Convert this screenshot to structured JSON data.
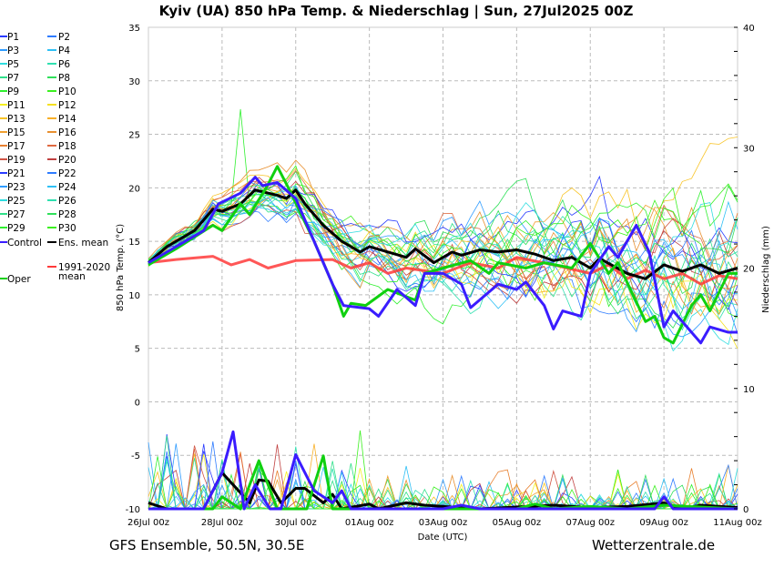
{
  "chart_data": {
    "type": "line",
    "title": "Kyiv  (UA)  850 hPa Temp. & Niederschlag | Sun, 27Jul2025 00Z",
    "xlabel": "Date (UTC)",
    "ylabel": "850 hPa Temp. (°C)",
    "ylabel_right": "Niederschlag (mm)",
    "ylim": [
      -10,
      35
    ],
    "ylim_right": [
      0,
      40
    ],
    "x_unit": "days since 26Jul 00z",
    "xlim": [
      0,
      16
    ],
    "x_ticks": [
      {
        "day": 0,
        "label": "26Jul 00z"
      },
      {
        "day": 2,
        "label": "28Jul 00z"
      },
      {
        "day": 4,
        "label": "30Jul 00z"
      },
      {
        "day": 6,
        "label": "01Aug 00z"
      },
      {
        "day": 8,
        "label": "03Aug 00z"
      },
      {
        "day": 10,
        "label": "05Aug 00z"
      },
      {
        "day": 12,
        "label": "07Aug 00z"
      },
      {
        "day": 14,
        "label": "09Aug 00z"
      },
      {
        "day": 16,
        "label": "11Aug 00z"
      }
    ],
    "y_ticks": [
      "-10",
      "-5",
      "0",
      "5",
      "10",
      "15",
      "20",
      "25",
      "30",
      "35"
    ],
    "y_ticks_right": [
      "0",
      "10",
      "20",
      "30",
      "40"
    ],
    "grid": true,
    "legend_placement": "left-outside",
    "members": [
      {
        "name": "P1",
        "color": "#2a3cff"
      },
      {
        "name": "P2",
        "color": "#2f7cff"
      },
      {
        "name": "P3",
        "color": "#2f9cff"
      },
      {
        "name": "P4",
        "color": "#30c0f5"
      },
      {
        "name": "P5",
        "color": "#30dde0"
      },
      {
        "name": "P6",
        "color": "#30e0b0"
      },
      {
        "name": "P7",
        "color": "#30e08a"
      },
      {
        "name": "P8",
        "color": "#30e05a"
      },
      {
        "name": "P9",
        "color": "#30f030"
      },
      {
        "name": "P10",
        "color": "#3cf020"
      },
      {
        "name": "P11",
        "color": "#f5f020"
      },
      {
        "name": "P12",
        "color": "#f5e020"
      },
      {
        "name": "P13",
        "color": "#f8c428"
      },
      {
        "name": "P14",
        "color": "#f8b028"
      },
      {
        "name": "P15",
        "color": "#f0a030"
      },
      {
        "name": "P16",
        "color": "#e89030"
      },
      {
        "name": "P17",
        "color": "#e88030"
      },
      {
        "name": "P18",
        "color": "#e06a40"
      },
      {
        "name": "P19",
        "color": "#d05545"
      },
      {
        "name": "P20",
        "color": "#c04040"
      },
      {
        "name": "P21",
        "color": "#2a3cff"
      },
      {
        "name": "P22",
        "color": "#2f7cff"
      },
      {
        "name": "P23",
        "color": "#2f9cff"
      },
      {
        "name": "P24",
        "color": "#30c0f5"
      },
      {
        "name": "P25",
        "color": "#30dde0"
      },
      {
        "name": "P26",
        "color": "#30e0b0"
      },
      {
        "name": "P27",
        "color": "#30e08a"
      },
      {
        "name": "P28",
        "color": "#30e05a"
      },
      {
        "name": "P29",
        "color": "#30f030"
      },
      {
        "name": "P30",
        "color": "#3cf020"
      }
    ],
    "series": [
      {
        "name": "Control",
        "color": "#3a1cff",
        "width": 3,
        "temp": [
          [
            0,
            13
          ],
          [
            0.75,
            14.5
          ],
          [
            1.5,
            16
          ],
          [
            1.9,
            18.5
          ],
          [
            2.5,
            19.5
          ],
          [
            2.9,
            21
          ],
          [
            3.1,
            20.2
          ],
          [
            3.5,
            20.5
          ],
          [
            4,
            19
          ],
          [
            4.5,
            15
          ],
          [
            5,
            11
          ],
          [
            5.3,
            9
          ],
          [
            6,
            8.7
          ],
          [
            6.25,
            8
          ],
          [
            6.75,
            10.5
          ],
          [
            7.25,
            9
          ],
          [
            7.5,
            12
          ],
          [
            8,
            12
          ],
          [
            8.5,
            11
          ],
          [
            8.75,
            8.8
          ],
          [
            9.5,
            11
          ],
          [
            10,
            10.5
          ],
          [
            10.25,
            11.2
          ],
          [
            10.75,
            9
          ],
          [
            11,
            6.8
          ],
          [
            11.25,
            8.5
          ],
          [
            11.75,
            8
          ],
          [
            12,
            12
          ],
          [
            12.5,
            14.5
          ],
          [
            12.75,
            13.5
          ],
          [
            13.25,
            16.5
          ],
          [
            13.6,
            14
          ],
          [
            14,
            7
          ],
          [
            14.25,
            8.5
          ],
          [
            15,
            5.5
          ],
          [
            15.25,
            7
          ],
          [
            15.75,
            6.5
          ],
          [
            16,
            6.5
          ]
        ],
        "precip": [
          [
            0,
            0
          ],
          [
            1.5,
            0
          ],
          [
            2,
            3
          ],
          [
            2.3,
            6.4
          ],
          [
            2.6,
            0
          ],
          [
            2.9,
            2
          ],
          [
            3.3,
            0
          ],
          [
            3.6,
            0
          ],
          [
            4,
            4.5
          ],
          [
            4.5,
            1.5
          ],
          [
            5,
            0.5
          ],
          [
            5.25,
            1.5
          ],
          [
            5.5,
            0
          ],
          [
            8,
            0
          ],
          [
            8.5,
            0.3
          ],
          [
            9,
            0
          ],
          [
            13.75,
            0
          ],
          [
            14,
            1
          ],
          [
            14.25,
            0
          ],
          [
            16,
            0
          ]
        ]
      },
      {
        "name": "Ens. mean",
        "color": "#000000",
        "width": 3,
        "temp": [
          [
            0,
            13
          ],
          [
            0.5,
            14.5
          ],
          [
            1.25,
            16
          ],
          [
            1.75,
            18
          ],
          [
            2,
            17.8
          ],
          [
            2.5,
            18.5
          ],
          [
            2.9,
            19.8
          ],
          [
            3.5,
            19.3
          ],
          [
            3.75,
            19
          ],
          [
            4,
            19.8
          ],
          [
            4.25,
            18.5
          ],
          [
            4.75,
            16.5
          ],
          [
            5.25,
            15
          ],
          [
            5.75,
            14
          ],
          [
            6,
            14.5
          ],
          [
            6.5,
            14
          ],
          [
            7,
            13.5
          ],
          [
            7.25,
            14.3
          ],
          [
            7.75,
            13
          ],
          [
            8.25,
            14
          ],
          [
            8.5,
            13.7
          ],
          [
            9,
            14.2
          ],
          [
            9.5,
            14
          ],
          [
            10,
            14.2
          ],
          [
            10.5,
            13.8
          ],
          [
            11,
            13.2
          ],
          [
            11.5,
            13.5
          ],
          [
            12,
            12.5
          ],
          [
            12.25,
            13.4
          ],
          [
            13,
            12
          ],
          [
            13.5,
            11.5
          ],
          [
            14,
            12.8
          ],
          [
            14.5,
            12.2
          ],
          [
            15,
            12.8
          ],
          [
            15.5,
            12
          ],
          [
            16,
            12.5
          ]
        ],
        "precip": [
          [
            0,
            0.5
          ],
          [
            0.5,
            0
          ],
          [
            1.5,
            0
          ],
          [
            2,
            3
          ],
          [
            2.3,
            2
          ],
          [
            2.75,
            0.5
          ],
          [
            3,
            2.4
          ],
          [
            3.25,
            2.3
          ],
          [
            3.6,
            0.5
          ],
          [
            4,
            1.7
          ],
          [
            4.25,
            1.7
          ],
          [
            4.75,
            0.5
          ],
          [
            5,
            1.2
          ],
          [
            5.25,
            0
          ],
          [
            6,
            0.4
          ],
          [
            6.25,
            0
          ],
          [
            7,
            0.5
          ],
          [
            7.5,
            0.3
          ],
          [
            8,
            0.2
          ],
          [
            9,
            0
          ],
          [
            11,
            0.3
          ],
          [
            12,
            0.1
          ],
          [
            13,
            0.2
          ],
          [
            14,
            0.5
          ],
          [
            14.5,
            0
          ],
          [
            15,
            0.3
          ],
          [
            16,
            0.1
          ]
        ]
      },
      {
        "name": "Oper",
        "color": "#10d010",
        "width": 3,
        "temp": [
          [
            0,
            12.8
          ],
          [
            0.75,
            14.3
          ],
          [
            1.75,
            16.5
          ],
          [
            2,
            16
          ],
          [
            2.5,
            18.5
          ],
          [
            2.75,
            17.5
          ],
          [
            3.2,
            20
          ],
          [
            3.5,
            22
          ],
          [
            3.8,
            20
          ],
          [
            4.5,
            15
          ],
          [
            5,
            11
          ],
          [
            5.3,
            8
          ],
          [
            5.5,
            9.2
          ],
          [
            5.9,
            9
          ],
          [
            6.5,
            10.5
          ],
          [
            7.25,
            9.5
          ],
          [
            7.5,
            12
          ],
          [
            8,
            12.5
          ],
          [
            8.75,
            13.2
          ],
          [
            9.25,
            12
          ],
          [
            9.5,
            13
          ],
          [
            10.25,
            12.5
          ],
          [
            10.75,
            13
          ],
          [
            11.5,
            12.5
          ],
          [
            12,
            14.8
          ],
          [
            12.5,
            12
          ],
          [
            12.75,
            13
          ],
          [
            13.5,
            7.5
          ],
          [
            13.75,
            8
          ],
          [
            14,
            6
          ],
          [
            14.25,
            5.5
          ],
          [
            14.75,
            9
          ],
          [
            15,
            10
          ],
          [
            15.25,
            8.5
          ],
          [
            15.75,
            12
          ],
          [
            16,
            12
          ]
        ],
        "precip": [
          [
            0,
            0
          ],
          [
            1.75,
            0
          ],
          [
            2,
            1
          ],
          [
            2.5,
            0
          ],
          [
            3,
            4
          ],
          [
            3.5,
            0
          ],
          [
            4.3,
            0
          ],
          [
            4.75,
            4.4
          ],
          [
            5,
            0
          ],
          [
            10,
            0
          ],
          [
            10.5,
            0.4
          ],
          [
            11,
            0
          ],
          [
            12,
            0.2
          ],
          [
            13,
            0
          ],
          [
            14,
            0.3
          ],
          [
            16,
            0
          ]
        ]
      },
      {
        "name": "1991-2020 mean",
        "color": "#ff3a3a",
        "width": 3,
        "temp": [
          [
            0,
            13
          ],
          [
            0.75,
            13.3
          ],
          [
            1.75,
            13.6
          ],
          [
            2.25,
            12.8
          ],
          [
            2.75,
            13.3
          ],
          [
            3.25,
            12.5
          ],
          [
            4,
            13.2
          ],
          [
            5,
            13.3
          ],
          [
            5.5,
            12.5
          ],
          [
            6,
            13
          ],
          [
            6.5,
            12
          ],
          [
            7,
            12.5
          ],
          [
            8,
            12
          ],
          [
            8.75,
            13
          ],
          [
            9.5,
            12.5
          ],
          [
            10,
            13.5
          ],
          [
            11,
            12.8
          ],
          [
            12,
            12
          ],
          [
            12.5,
            12.8
          ],
          [
            13,
            11.5
          ],
          [
            13.5,
            12.3
          ],
          [
            14,
            11.5
          ],
          [
            14.5,
            12
          ],
          [
            15,
            11
          ],
          [
            15.5,
            11.8
          ],
          [
            16,
            11.5
          ]
        ]
      }
    ],
    "legend": {
      "control": "Control",
      "ens_mean": "Ens. mean",
      "climate_line1": "1991-2020",
      "climate_line2": "mean",
      "oper": "Oper"
    }
  },
  "footer": {
    "left": "GFS Ensemble, 50.5N, 30.5E",
    "right": "Wetterzentrale.de"
  }
}
